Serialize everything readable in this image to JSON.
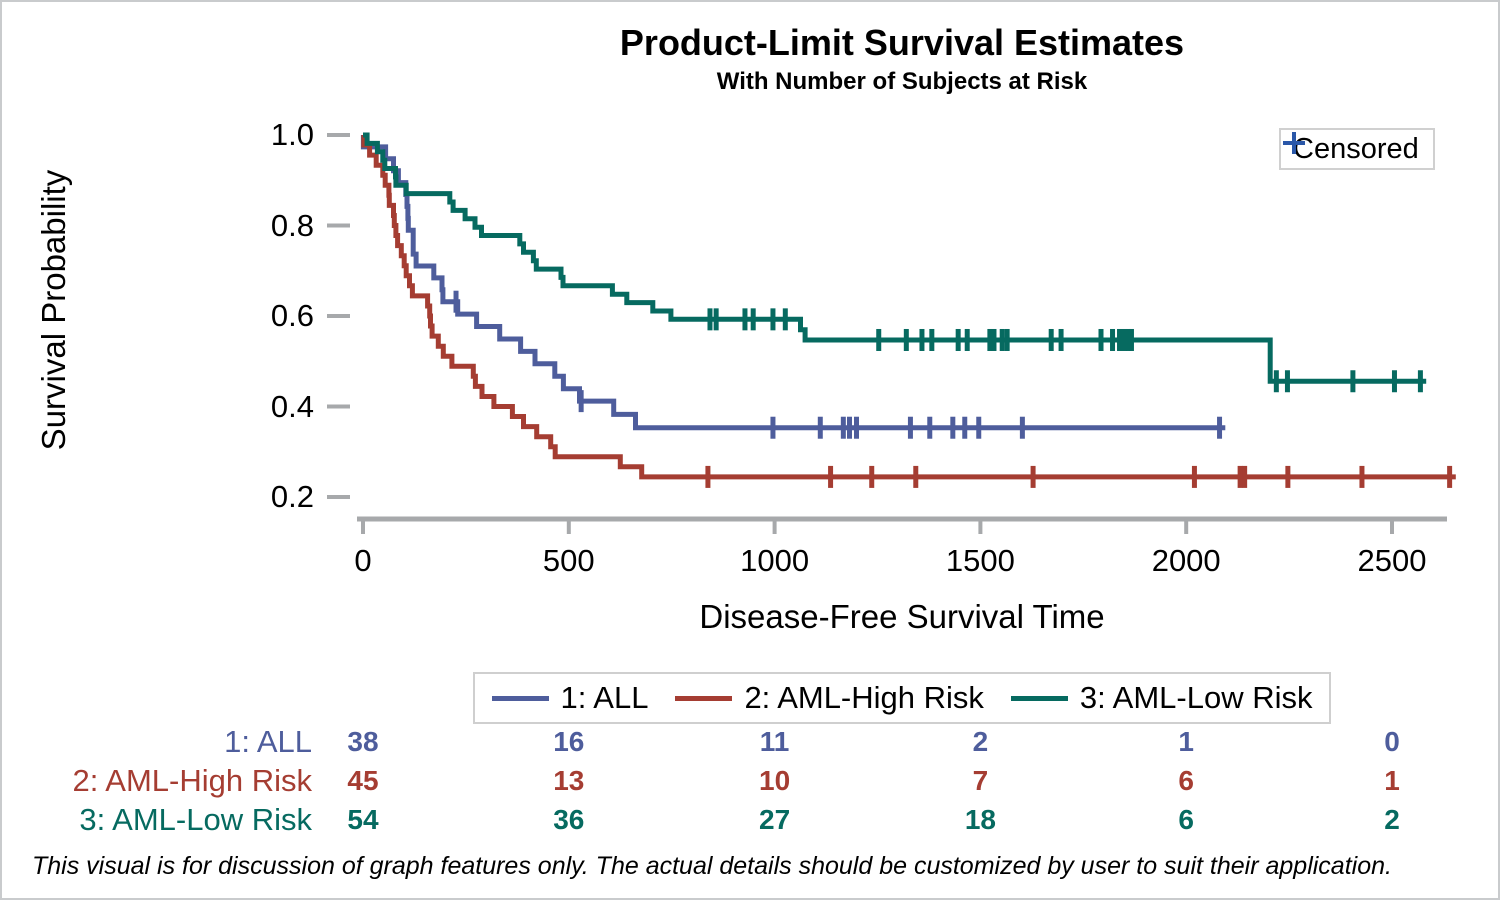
{
  "figure": {
    "footnote": "This visual is for discussion of graph features only.  The actual details should be customized by user to suit their application."
  },
  "chart_data": {
    "type": "line",
    "subtype": "kaplan-meier-step",
    "title": "Product-Limit Survival Estimates",
    "subtitle": "With Number of Subjects at Risk",
    "xlabel": "Disease-Free Survival Time",
    "ylabel": "Survival Probability",
    "censored_legend_label": "Censored",
    "censored_marker_color": "#2a57a8",
    "axis_color": "#a7a9ab",
    "xlim": [
      0,
      2700
    ],
    "ylim": [
      0.2,
      1.0
    ],
    "x_ticks": [
      0,
      500,
      1000,
      1500,
      2000,
      2500
    ],
    "y_ticks": [
      "1.0",
      "0.8",
      "0.6",
      "0.4",
      "0.2"
    ],
    "grid": "off",
    "legend_position": "bottom",
    "at_risk_ticks": [
      0,
      500,
      1000,
      1500,
      2000,
      2500
    ],
    "series": [
      {
        "name": "1: ALL",
        "color": "#4e5d9c",
        "at_risk": [
          38,
          16,
          11,
          2,
          1,
          0
        ],
        "end_time": 2095,
        "events": [
          [
            1,
            0.9737
          ],
          [
            55,
            0.9474
          ],
          [
            74,
            0.9211
          ],
          [
            86,
            0.8947
          ],
          [
            104,
            0.8684
          ],
          [
            107,
            0.8421
          ],
          [
            109,
            0.8158
          ],
          [
            110,
            0.7895
          ],
          [
            122,
            0.7368
          ],
          [
            129,
            0.7105
          ],
          [
            172,
            0.6842
          ],
          [
            192,
            0.6579
          ],
          [
            194,
            0.6316
          ],
          [
            230,
            0.6041
          ],
          [
            276,
            0.5767
          ],
          [
            332,
            0.5492
          ],
          [
            383,
            0.5217
          ],
          [
            418,
            0.4943
          ],
          [
            466,
            0.4668
          ],
          [
            487,
            0.4394
          ],
          [
            526,
            0.4119
          ],
          [
            609,
            0.3825
          ],
          [
            662,
            0.3531
          ]
        ],
        "censored": [
          [
            226,
            0.6316
          ],
          [
            530,
            0.4119
          ],
          [
            996,
            0.3531
          ],
          [
            1111,
            0.3531
          ],
          [
            1167,
            0.3531
          ],
          [
            1182,
            0.3531
          ],
          [
            1199,
            0.3531
          ],
          [
            1330,
            0.3531
          ],
          [
            1377,
            0.3531
          ],
          [
            1433,
            0.3531
          ],
          [
            1462,
            0.3531
          ],
          [
            1496,
            0.3531
          ],
          [
            1602,
            0.3531
          ],
          [
            2081,
            0.3531
          ]
        ]
      },
      {
        "name": "2: AML-High Risk",
        "color": "#a53d32",
        "at_risk": [
          45,
          13,
          10,
          7,
          6,
          1
        ],
        "end_time": 2655,
        "events": [
          [
            2,
            0.9778
          ],
          [
            16,
            0.9556
          ],
          [
            32,
            0.9333
          ],
          [
            48,
            0.9111
          ],
          [
            54,
            0.8889
          ],
          [
            63,
            0.8667
          ],
          [
            64,
            0.8444
          ],
          [
            74,
            0.8222
          ],
          [
            76,
            0.8
          ],
          [
            80,
            0.7778
          ],
          [
            84,
            0.7556
          ],
          [
            93,
            0.7333
          ],
          [
            100,
            0.7111
          ],
          [
            105,
            0.6889
          ],
          [
            113,
            0.6667
          ],
          [
            120,
            0.6444
          ],
          [
            157,
            0.6222
          ],
          [
            162,
            0.6
          ],
          [
            164,
            0.5778
          ],
          [
            168,
            0.5556
          ],
          [
            183,
            0.5333
          ],
          [
            195,
            0.5111
          ],
          [
            216,
            0.4889
          ],
          [
            268,
            0.4667
          ],
          [
            273,
            0.4444
          ],
          [
            289,
            0.4222
          ],
          [
            318,
            0.4
          ],
          [
            363,
            0.3778
          ],
          [
            390,
            0.3556
          ],
          [
            422,
            0.3333
          ],
          [
            456,
            0.3111
          ],
          [
            467,
            0.2889
          ],
          [
            625,
            0.2667
          ],
          [
            677,
            0.2444
          ]
        ],
        "censored": [
          [
            838,
            0.2444
          ],
          [
            1136,
            0.2444
          ],
          [
            1236,
            0.2444
          ],
          [
            1343,
            0.2444
          ],
          [
            1628,
            0.2444
          ],
          [
            2020,
            0.2444
          ],
          [
            2131,
            0.2444
          ],
          [
            2142,
            0.2444
          ],
          [
            2247,
            0.2444
          ],
          [
            2427,
            0.2444
          ],
          [
            2640,
            0.2444
          ]
        ]
      },
      {
        "name": "3: AML-Low Risk",
        "color": "#066a60",
        "at_risk": [
          54,
          36,
          27,
          18,
          6,
          2
        ],
        "end_time": 2583,
        "events": [
          [
            10,
            0.9815
          ],
          [
            35,
            0.963
          ],
          [
            48,
            0.9444
          ],
          [
            53,
            0.9259
          ],
          [
            79,
            0.9074
          ],
          [
            80,
            0.8889
          ],
          [
            105,
            0.8704
          ],
          [
            211,
            0.8519
          ],
          [
            219,
            0.8333
          ],
          [
            248,
            0.8148
          ],
          [
            272,
            0.7963
          ],
          [
            288,
            0.7778
          ],
          [
            381,
            0.7593
          ],
          [
            390,
            0.7407
          ],
          [
            414,
            0.7222
          ],
          [
            421,
            0.7037
          ],
          [
            481,
            0.6852
          ],
          [
            486,
            0.6667
          ],
          [
            606,
            0.6481
          ],
          [
            641,
            0.6296
          ],
          [
            704,
            0.6111
          ],
          [
            748,
            0.5926
          ],
          [
            1063,
            0.5698
          ],
          [
            1074,
            0.547
          ],
          [
            2204,
            0.4558
          ]
        ],
        "censored": [
          [
            843,
            0.5926
          ],
          [
            858,
            0.5926
          ],
          [
            928,
            0.5926
          ],
          [
            948,
            0.5926
          ],
          [
            996,
            0.5926
          ],
          [
            1026,
            0.5926
          ],
          [
            1253,
            0.547
          ],
          [
            1320,
            0.547
          ],
          [
            1358,
            0.547
          ],
          [
            1382,
            0.547
          ],
          [
            1446,
            0.547
          ],
          [
            1468,
            0.547
          ],
          [
            1523,
            0.547
          ],
          [
            1533,
            0.547
          ],
          [
            1553,
            0.547
          ],
          [
            1565,
            0.547
          ],
          [
            1672,
            0.547
          ],
          [
            1696,
            0.547
          ],
          [
            1793,
            0.547
          ],
          [
            1821,
            0.547
          ],
          [
            1838,
            0.547
          ],
          [
            1850,
            0.547
          ],
          [
            1860,
            0.547
          ],
          [
            1867,
            0.547
          ],
          [
            2219,
            0.4558
          ],
          [
            2246,
            0.4558
          ],
          [
            2405,
            0.4558
          ],
          [
            2506,
            0.4558
          ],
          [
            2569,
            0.4558
          ]
        ]
      }
    ]
  }
}
